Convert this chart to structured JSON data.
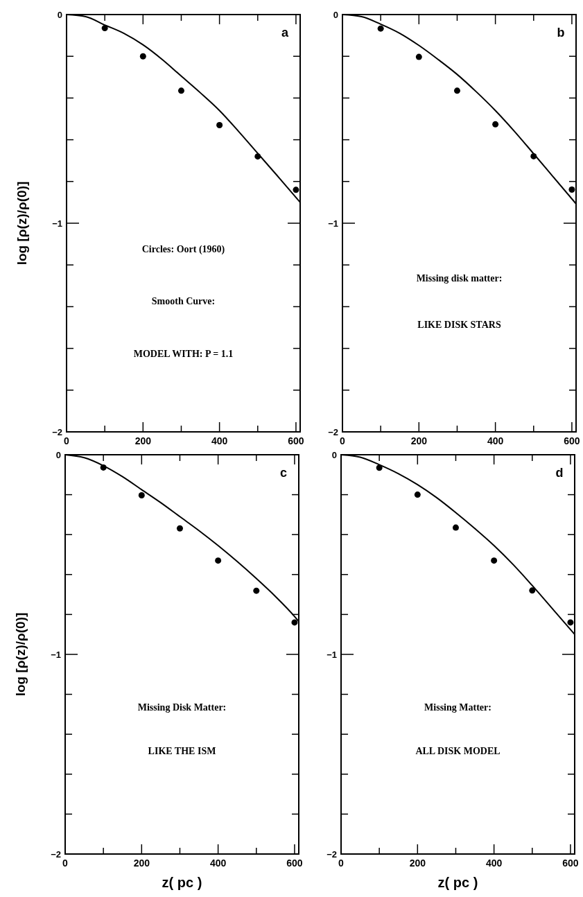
{
  "chart_data": [
    {
      "type": "line",
      "ylabel": "log [ρ(z)/ρ(0)]",
      "xlim": [
        0,
        611
      ],
      "ylim": [
        -2,
        0
      ],
      "annotations": [
        "a",
        "Circles: Oort (1960)",
        "Smooth Curve:",
        "MODEL WITH: P = 1.1"
      ],
      "xticks": [
        0,
        {
          "value": 100,
          "label": null
        },
        200,
        {
          "value": 300,
          "label": null
        },
        400,
        {
          "value": 500,
          "label": null
        },
        600
      ],
      "yticks": [
        -2,
        {
          "value": -1.8,
          "label": null
        },
        {
          "value": -1.6,
          "label": null
        },
        {
          "value": -1.4,
          "label": null
        },
        {
          "value": -1.2,
          "label": null
        },
        -1,
        {
          "value": -0.8,
          "label": null
        },
        {
          "value": -0.6,
          "label": null
        },
        {
          "value": -0.4,
          "label": null
        },
        {
          "value": -0.2,
          "label": null
        },
        0
      ],
      "series": [
        {
          "color": "#000000",
          "line_style": "solid",
          "x": [
            0,
            50,
            100,
            150,
            200,
            250,
            300,
            350,
            400,
            450,
            500,
            550,
            611
          ],
          "values": [
            0,
            -0.01,
            -0.05,
            -0.09,
            -0.145,
            -0.215,
            -0.295,
            -0.375,
            -0.46,
            -0.56,
            -0.665,
            -0.77,
            -0.9
          ]
        },
        {
          "type": "scatter",
          "color": "#000000",
          "marker": "circle",
          "x": [
            100,
            200,
            300,
            400,
            500,
            600
          ],
          "values": [
            -0.065,
            -0.2,
            -0.365,
            -0.53,
            -0.68,
            -0.84
          ]
        }
      ]
    },
    {
      "type": "line",
      "xlim": [
        0,
        611
      ],
      "ylim": [
        -2,
        0
      ],
      "annotations": [
        "b",
        "Missing disk matter:",
        "LIKE DISK STARS"
      ],
      "xticks": [
        0,
        {
          "value": 100,
          "label": null
        },
        200,
        {
          "value": 300,
          "label": null
        },
        400,
        {
          "value": 500,
          "label": null
        },
        600
      ],
      "yticks": [
        -2,
        {
          "value": -1.8,
          "label": null
        },
        {
          "value": -1.6,
          "label": null
        },
        {
          "value": -1.4,
          "label": null
        },
        {
          "value": -1.2,
          "label": null
        },
        -1,
        {
          "value": -0.8,
          "label": null
        },
        {
          "value": -0.6,
          "label": null
        },
        {
          "value": -0.4,
          "label": null
        },
        {
          "value": -0.2,
          "label": null
        },
        0
      ],
      "series": [
        {
          "color": "#000000",
          "line_style": "solid",
          "x": [
            0,
            50,
            100,
            150,
            200,
            250,
            300,
            350,
            400,
            450,
            500,
            550,
            611
          ],
          "values": [
            0,
            -0.01,
            -0.046,
            -0.09,
            -0.148,
            -0.215,
            -0.287,
            -0.37,
            -0.46,
            -0.56,
            -0.667,
            -0.775,
            -0.907
          ]
        },
        {
          "type": "scatter",
          "color": "#000000",
          "marker": "circle",
          "x": [
            100,
            200,
            300,
            400,
            500,
            600
          ],
          "values": [
            -0.067,
            -0.203,
            -0.365,
            -0.526,
            -0.679,
            -0.839
          ]
        }
      ]
    },
    {
      "type": "line",
      "xlabel": "z( pc )",
      "ylabel": "log [ρ(z)/ρ(0)]",
      "xlim": [
        0,
        611
      ],
      "ylim": [
        -2,
        0
      ],
      "annotations": [
        "c",
        "Missing Disk Matter:",
        "LIKE THE ISM"
      ],
      "xticks": [
        0,
        {
          "value": 100,
          "label": null
        },
        200,
        {
          "value": 300,
          "label": null
        },
        400,
        {
          "value": 500,
          "label": null
        },
        600
      ],
      "yticks": [
        -2,
        {
          "value": -1.8,
          "label": null
        },
        {
          "value": -1.6,
          "label": null
        },
        {
          "value": -1.4,
          "label": null
        },
        {
          "value": -1.2,
          "label": null
        },
        -1,
        {
          "value": -0.8,
          "label": null
        },
        {
          "value": -0.6,
          "label": null
        },
        {
          "value": -0.4,
          "label": null
        },
        {
          "value": -0.2,
          "label": null
        },
        0
      ],
      "series": [
        {
          "color": "#000000",
          "line_style": "solid",
          "x": [
            0,
            50,
            100,
            150,
            200,
            250,
            300,
            350,
            400,
            450,
            500,
            550,
            600,
            611
          ],
          "values": [
            0,
            -0.015,
            -0.055,
            -0.11,
            -0.175,
            -0.24,
            -0.31,
            -0.38,
            -0.455,
            -0.535,
            -0.62,
            -0.71,
            -0.81,
            -0.835
          ]
        },
        {
          "type": "scatter",
          "color": "#000000",
          "marker": "circle",
          "x": [
            100,
            200,
            300,
            400,
            500,
            600
          ],
          "values": [
            -0.064,
            -0.203,
            -0.369,
            -0.53,
            -0.681,
            -0.84
          ]
        }
      ]
    },
    {
      "type": "line",
      "xlabel": "z( pc )",
      "xlim": [
        0,
        611
      ],
      "ylim": [
        -2,
        0
      ],
      "annotations": [
        "d",
        "Missing Matter:",
        "ALL DISK MODEL"
      ],
      "xticks": [
        0,
        {
          "value": 100,
          "label": null
        },
        200,
        {
          "value": 300,
          "label": null
        },
        400,
        {
          "value": 500,
          "label": null
        },
        600
      ],
      "yticks": [
        -2,
        {
          "value": -1.8,
          "label": null
        },
        {
          "value": -1.6,
          "label": null
        },
        {
          "value": -1.4,
          "label": null
        },
        {
          "value": -1.2,
          "label": null
        },
        -1,
        {
          "value": -0.8,
          "label": null
        },
        {
          "value": -0.6,
          "label": null
        },
        {
          "value": -0.4,
          "label": null
        },
        {
          "value": -0.2,
          "label": null
        },
        0
      ],
      "series": [
        {
          "color": "#000000",
          "line_style": "solid",
          "x": [
            0,
            50,
            100,
            150,
            200,
            250,
            300,
            350,
            400,
            450,
            500,
            550,
            611
          ],
          "values": [
            0,
            -0.012,
            -0.05,
            -0.095,
            -0.15,
            -0.215,
            -0.29,
            -0.37,
            -0.455,
            -0.55,
            -0.655,
            -0.765,
            -0.9
          ]
        },
        {
          "type": "scatter",
          "color": "#000000",
          "marker": "circle",
          "x": [
            100,
            200,
            300,
            400,
            500,
            600
          ],
          "values": [
            -0.065,
            -0.2,
            -0.365,
            -0.53,
            -0.68,
            -0.84
          ]
        }
      ]
    }
  ]
}
